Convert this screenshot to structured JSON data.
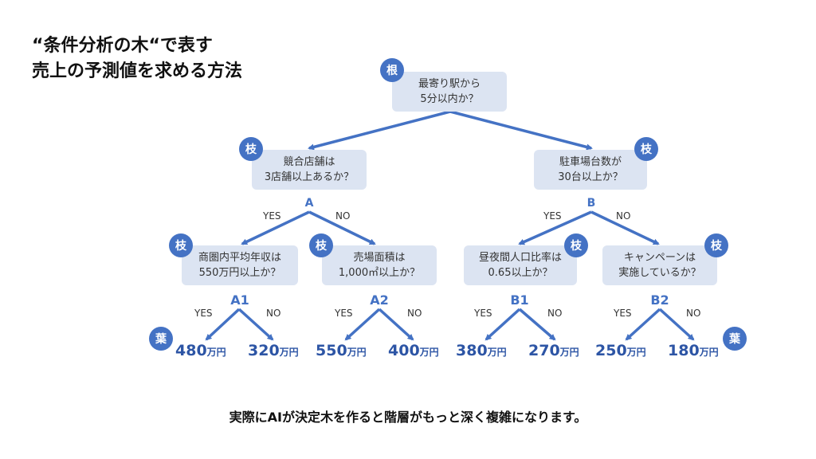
{
  "title": {
    "line1": "“条件分析の木“で表す",
    "line2": "売上の予測値を求める方法"
  },
  "badges": {
    "root": "根",
    "branch": "枝",
    "leaf": "葉"
  },
  "nodes": {
    "root": "最寄り駅から\n5分以内か？",
    "left": "競合店舗は\n3店舗以上あるか？",
    "right": "駐車場台数が\n30台以上か？",
    "a1": "商圏内平均年収は\n550万円以上か？",
    "a2": "売場面積は\n1,000㎡以上か？",
    "b1": "昼夜間人口比率は\n0.65以上か？",
    "b2": "キャンペーンは\n実施しているか？"
  },
  "labels": {
    "A": "A",
    "B": "B",
    "A1": "A1",
    "A2": "A2",
    "B1": "B1",
    "B2": "B2"
  },
  "yes": "YES",
  "no": "NO",
  "unit": "万円",
  "leaves": {
    "a1_yes": "480",
    "a1_no": "320",
    "a2_yes": "550",
    "a2_no": "400",
    "b1_yes": "380",
    "b1_no": "270",
    "b2_yes": "250",
    "b2_no": "180"
  },
  "footer": "実際にAIが決定木を作ると階層がもっと深く複雑になります。",
  "colors": {
    "accent": "#4472c4",
    "box": "#dce4f2"
  }
}
